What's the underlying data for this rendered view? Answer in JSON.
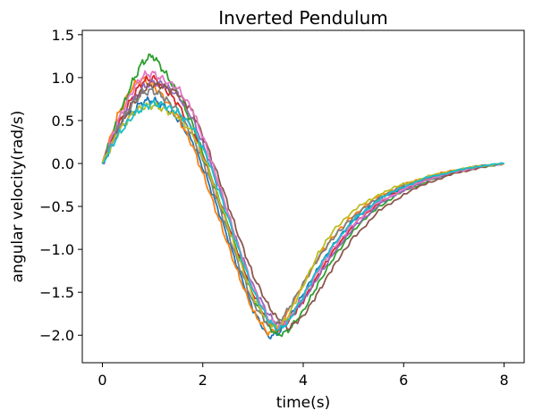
{
  "chart_data": {
    "type": "line",
    "title": "Inverted Pendulum",
    "xlabel": "time(s)",
    "ylabel": "angular velocity(rad/s)",
    "xlim": [
      -0.4,
      8.4
    ],
    "ylim": [
      -2.32,
      1.55
    ],
    "xticks": [
      0,
      2,
      4,
      6,
      8
    ],
    "xtick_labels": [
      "0",
      "2",
      "4",
      "6",
      "8"
    ],
    "yticks": [
      -2.0,
      -1.5,
      -1.0,
      -0.5,
      0.0,
      0.5,
      1.0,
      1.5
    ],
    "ytick_labels": [
      "−2.0",
      "−1.5",
      "−1.0",
      "−0.5",
      "0.0",
      "0.5",
      "1.0",
      "1.5"
    ],
    "grid": false,
    "legend": "none",
    "x": [
      0.0,
      0.3,
      0.6,
      0.8,
      1.0,
      1.2,
      1.5,
      1.8,
      2.1,
      2.4,
      2.7,
      3.0,
      3.3,
      3.5,
      3.7,
      4.0,
      4.3,
      4.6,
      5.0,
      5.5,
      6.0,
      6.5,
      7.0,
      7.5,
      8.0
    ],
    "series": [
      {
        "color": "#1f77b4",
        "values": [
          0.0,
          0.35,
          0.6,
          0.72,
          0.74,
          0.68,
          0.52,
          0.25,
          -0.2,
          -0.7,
          -1.22,
          -1.7,
          -2.02,
          -1.98,
          -1.82,
          -1.52,
          -1.22,
          -0.95,
          -0.66,
          -0.42,
          -0.27,
          -0.16,
          -0.09,
          -0.04,
          0.0
        ]
      },
      {
        "color": "#ff7f0e",
        "values": [
          0.0,
          0.55,
          0.9,
          0.98,
          0.92,
          0.78,
          0.55,
          0.2,
          -0.28,
          -0.78,
          -1.28,
          -1.72,
          -1.98,
          -1.92,
          -1.72,
          -1.4,
          -1.1,
          -0.85,
          -0.6,
          -0.38,
          -0.25,
          -0.15,
          -0.08,
          -0.03,
          0.0
        ]
      },
      {
        "color": "#2ca02c",
        "values": [
          0.0,
          0.5,
          0.95,
          1.18,
          1.26,
          1.1,
          0.82,
          0.45,
          -0.05,
          -0.55,
          -1.05,
          -1.55,
          -1.9,
          -2.0,
          -1.95,
          -1.72,
          -1.4,
          -1.1,
          -0.78,
          -0.5,
          -0.32,
          -0.2,
          -0.11,
          -0.05,
          0.0
        ]
      },
      {
        "color": "#d62728",
        "values": [
          0.0,
          0.42,
          0.78,
          0.95,
          1.0,
          0.9,
          0.7,
          0.38,
          -0.06,
          -0.55,
          -1.05,
          -1.52,
          -1.85,
          -1.93,
          -1.85,
          -1.6,
          -1.3,
          -1.02,
          -0.72,
          -0.46,
          -0.3,
          -0.18,
          -0.1,
          -0.04,
          0.0
        ]
      },
      {
        "color": "#9467bd",
        "values": [
          0.0,
          0.4,
          0.72,
          0.88,
          0.95,
          0.92,
          0.8,
          0.52,
          0.08,
          -0.42,
          -0.95,
          -1.42,
          -1.75,
          -1.88,
          -1.82,
          -1.6,
          -1.32,
          -1.05,
          -0.75,
          -0.48,
          -0.31,
          -0.19,
          -0.1,
          -0.04,
          0.0
        ]
      },
      {
        "color": "#8c564b",
        "values": [
          0.0,
          0.38,
          0.7,
          0.85,
          0.92,
          0.9,
          0.82,
          0.6,
          0.18,
          -0.3,
          -0.82,
          -1.3,
          -1.65,
          -1.82,
          -1.92,
          -1.78,
          -1.5,
          -1.2,
          -0.86,
          -0.56,
          -0.36,
          -0.22,
          -0.12,
          -0.05,
          0.0
        ]
      },
      {
        "color": "#e377c2",
        "values": [
          0.0,
          0.48,
          0.85,
          1.02,
          1.05,
          0.98,
          0.88,
          0.62,
          0.15,
          -0.38,
          -0.95,
          -1.45,
          -1.8,
          -1.9,
          -1.82,
          -1.55,
          -1.25,
          -0.98,
          -0.7,
          -0.45,
          -0.3,
          -0.18,
          -0.1,
          -0.04,
          0.0
        ]
      },
      {
        "color": "#7f7f7f",
        "values": [
          0.0,
          0.4,
          0.7,
          0.82,
          0.85,
          0.78,
          0.62,
          0.32,
          -0.12,
          -0.62,
          -1.15,
          -1.62,
          -1.88,
          -1.86,
          -1.7,
          -1.4,
          -1.1,
          -0.86,
          -0.62,
          -0.4,
          -0.26,
          -0.16,
          -0.09,
          -0.03,
          0.0
        ]
      },
      {
        "color": "#bcbd22",
        "values": [
          0.0,
          0.35,
          0.58,
          0.66,
          0.68,
          0.64,
          0.55,
          0.35,
          -0.05,
          -0.55,
          -1.08,
          -1.55,
          -1.85,
          -1.92,
          -1.78,
          -1.42,
          -1.05,
          -0.78,
          -0.55,
          -0.36,
          -0.24,
          -0.15,
          -0.08,
          -0.03,
          0.0
        ]
      },
      {
        "color": "#17becf",
        "values": [
          0.0,
          0.32,
          0.55,
          0.65,
          0.7,
          0.68,
          0.6,
          0.42,
          0.05,
          -0.45,
          -0.98,
          -1.48,
          -1.82,
          -1.94,
          -1.85,
          -1.55,
          -1.22,
          -0.95,
          -0.66,
          -0.42,
          -0.27,
          -0.16,
          -0.09,
          -0.03,
          0.0
        ]
      }
    ]
  }
}
